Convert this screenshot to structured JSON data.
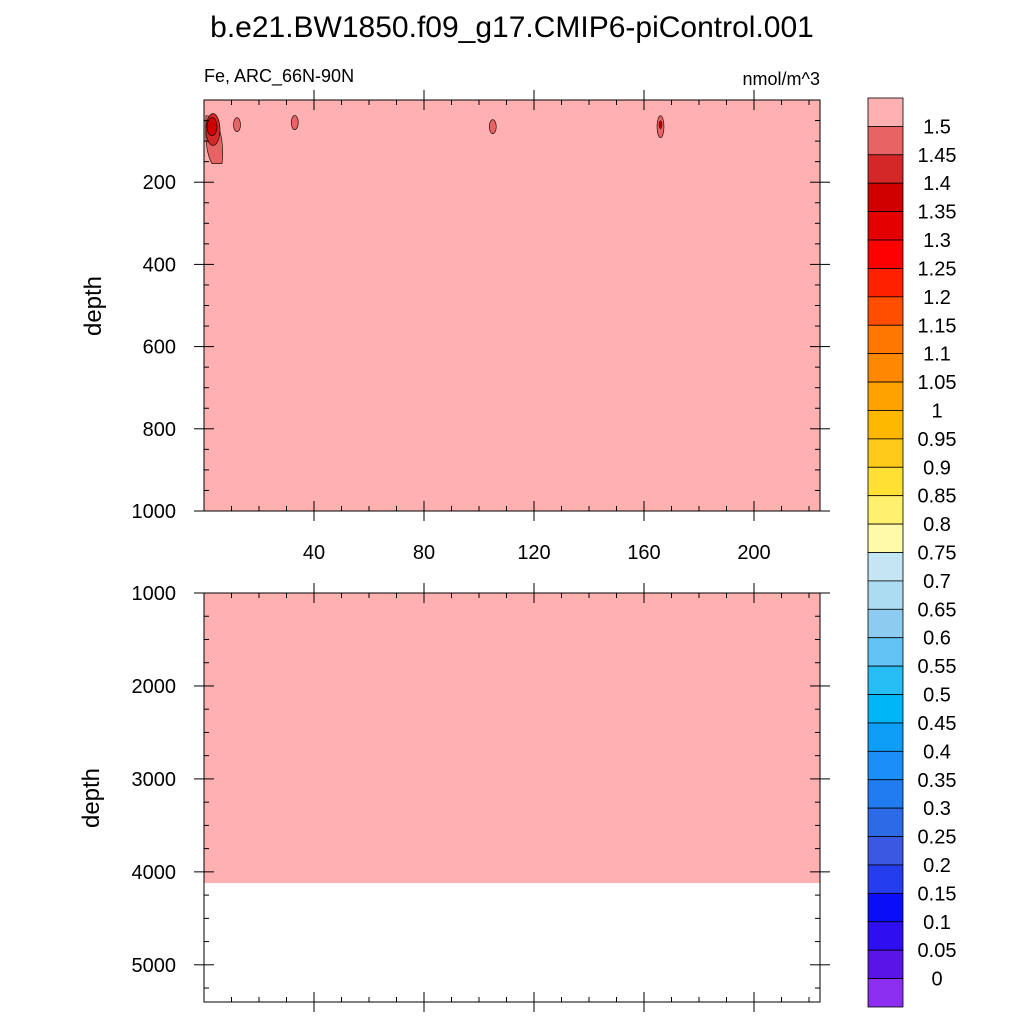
{
  "chart_data": {
    "type": "heatmap",
    "title": "b.e21.BW1850.f09_g17.CMIP6-piControl.001",
    "subtitle_left": "Fe, ARC_66N-90N",
    "subtitle_right": "nmol/m^3",
    "xlabel": "",
    "colors": {
      "fill": "#FFB1B1",
      "contour_line": "#000000"
    },
    "top_panel": {
      "ylabel": "depth",
      "xlim": [
        0,
        224
      ],
      "ylim": [
        0,
        1000
      ],
      "y_reversed": true,
      "x_ticks": [
        40,
        80,
        120,
        160,
        200
      ],
      "y_ticks": [
        200,
        400,
        600,
        800,
        1000
      ],
      "background_value": ">1.5",
      "features": [
        {
          "x": 2,
          "depth": 65,
          "value": "1.35-1.45"
        },
        {
          "x": 12,
          "depth": 60,
          "value": "1.45-1.5"
        },
        {
          "x": 33,
          "depth": 55,
          "value": "1.45-1.5"
        },
        {
          "x": 105,
          "depth": 65,
          "value": "1.45-1.5"
        },
        {
          "x": 166,
          "depth": 65,
          "value": "1.4-1.5"
        }
      ]
    },
    "bottom_panel": {
      "ylabel": "depth",
      "xlim": [
        0,
        224
      ],
      "ylim": [
        1000,
        5400
      ],
      "y_reversed": true,
      "y_ticks": [
        1000,
        2000,
        3000,
        4000,
        5000
      ],
      "background_value": ">1.5",
      "bottom_of_data_depth": 4120
    },
    "colorbar": {
      "labels": [
        "1.5",
        "1.45",
        "1.4",
        "1.35",
        "1.3",
        "1.25",
        "1.2",
        "1.15",
        "1.1",
        "1.05",
        "1",
        "0.95",
        "0.9",
        "0.85",
        "0.8",
        "0.75",
        "0.7",
        "0.65",
        "0.6",
        "0.55",
        "0.5",
        "0.45",
        "0.4",
        "0.35",
        "0.3",
        "0.25",
        "0.2",
        "0.15",
        "0.1",
        "0.05",
        "0"
      ],
      "colors": [
        "#FFB1B1",
        "#E86464",
        "#D42828",
        "#D00000",
        "#E50000",
        "#FF0000",
        "#FF2000",
        "#FF4E00",
        "#FF7600",
        "#FF8800",
        "#FFA200",
        "#FFB800",
        "#FFCA18",
        "#FFE033",
        "#FFF06E",
        "#FFFAAA",
        "#C4E6F4",
        "#ABDCF1",
        "#8DCCF0",
        "#61C4F4",
        "#26BCF4",
        "#00B6F6",
        "#0E9EF8",
        "#1C8EF8",
        "#207CF0",
        "#2D6AE8",
        "#3A58E2",
        "#253EED",
        "#0A0EF8",
        "#2F0EF2",
        "#5A14E8",
        "#8B2EF0"
      ]
    }
  }
}
